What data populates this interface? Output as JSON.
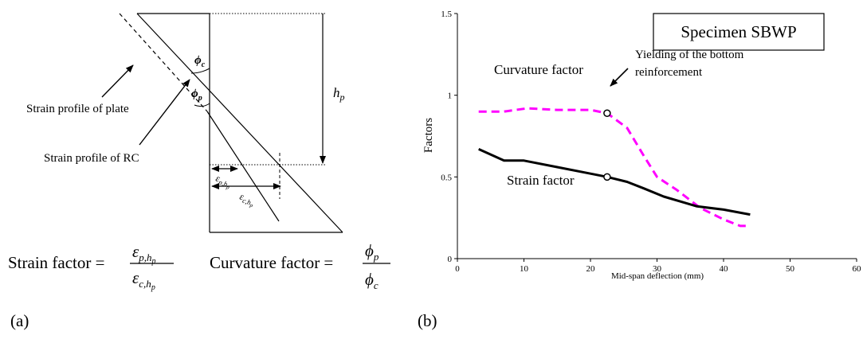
{
  "panel_a": {
    "label": "(a)",
    "strain_profile_plate_label": "Strain profile of plate",
    "strain_profile_rc_label": "Strain profile of RC",
    "phi_c": "ϕc",
    "phi_p": "ϕp",
    "h_p": "hp",
    "eps_p_hp": "εp,hp",
    "eps_c_hp": "εc,hp",
    "strain_factor_label": "Strain factor =",
    "curvature_factor_label": "Curvature factor ="
  },
  "panel_b": {
    "label": "(b)"
  },
  "chart_data": {
    "type": "line",
    "legend_box_text": "Specimen SBWP",
    "xlabel": "Mid-span deflection (mm)",
    "ylabel": "Factors",
    "xlim": [
      0,
      60
    ],
    "ylim": [
      0,
      1.5
    ],
    "x_ticks": [
      "0",
      "10",
      "20",
      "30",
      "40",
      "50",
      "60"
    ],
    "y_ticks": [
      "0",
      "0.5",
      "1",
      "1.5"
    ],
    "grid": false,
    "series": [
      {
        "name": "Curvature factor",
        "style": "dashed",
        "color": "#ff00ff",
        "x": [
          3.2,
          7.0,
          10.5,
          15.0,
          20.0,
          22.5,
          25.5,
          28.0,
          30.0,
          33.0,
          36.5,
          40.0,
          42.5,
          44.0
        ],
        "y": [
          0.9,
          0.9,
          0.92,
          0.91,
          0.91,
          0.89,
          0.8,
          0.63,
          0.5,
          0.42,
          0.31,
          0.24,
          0.2,
          0.2
        ]
      },
      {
        "name": "Strain factor",
        "style": "solid",
        "color": "#000000",
        "x": [
          3.2,
          7.0,
          10.0,
          15.0,
          20.0,
          22.5,
          25.5,
          28.0,
          31.0,
          36.0,
          40.0,
          44.0
        ],
        "y": [
          0.67,
          0.6,
          0.6,
          0.56,
          0.52,
          0.5,
          0.47,
          0.43,
          0.38,
          0.32,
          0.3,
          0.27
        ]
      }
    ],
    "markers": [
      {
        "x": 22.5,
        "y": 0.89
      },
      {
        "x": 22.5,
        "y": 0.5
      }
    ],
    "annotations": [
      {
        "text_line1": "Yielding of the bottom",
        "text_line2": "reinforcement"
      }
    ]
  }
}
